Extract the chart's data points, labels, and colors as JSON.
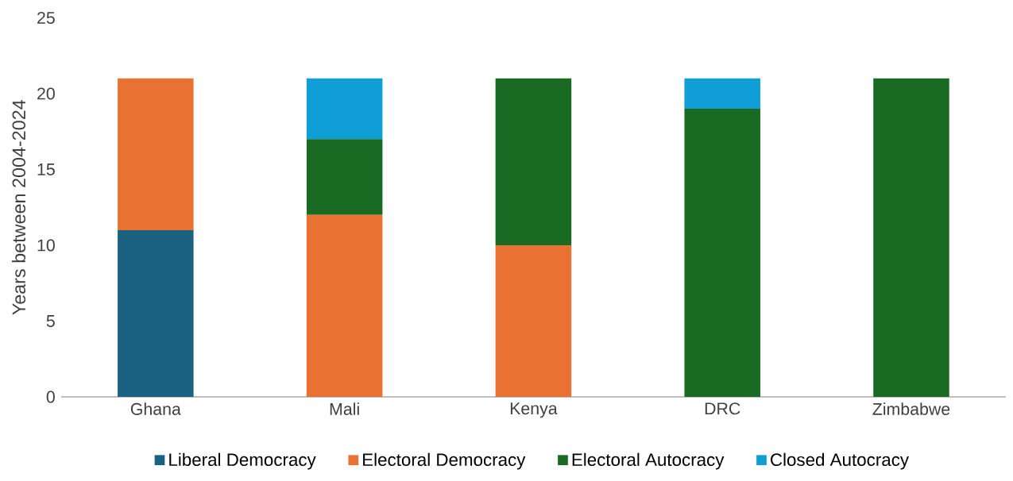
{
  "chart_data": {
    "type": "bar",
    "stacked": true,
    "ylabel": "Years between 2004-2024",
    "categories": [
      "Ghana",
      "Mali",
      "Kenya",
      "DRC",
      "Zimbabwe"
    ],
    "series": [
      {
        "name": "Liberal Democracy",
        "color": "#1a6182",
        "values": [
          11,
          0,
          0,
          0,
          0
        ]
      },
      {
        "name": "Electoral Democracy",
        "color": "#e97132",
        "values": [
          10,
          12,
          10,
          0,
          0
        ]
      },
      {
        "name": "Electoral Autocracy",
        "color": "#196b24",
        "values": [
          0,
          5,
          11,
          19,
          21
        ]
      },
      {
        "name": "Closed Autocracy",
        "color": "#0f9ed5",
        "values": [
          0,
          4,
          0,
          2,
          0
        ]
      }
    ],
    "ylim": [
      0,
      25
    ],
    "yticks": [
      0,
      5,
      10,
      15,
      20,
      25
    ],
    "grid": false,
    "legend": "bottom"
  }
}
